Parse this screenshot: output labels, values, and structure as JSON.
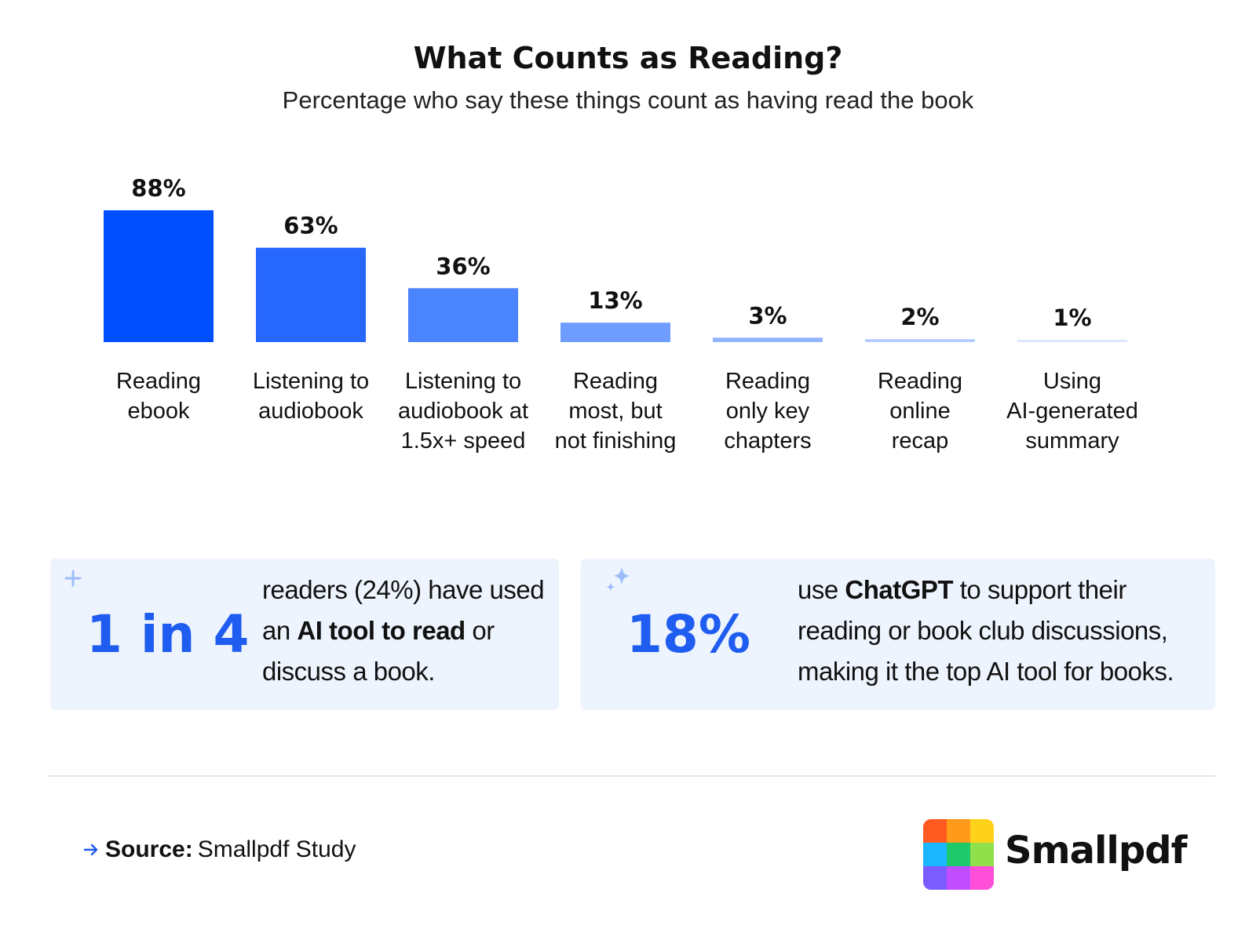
{
  "chart_data": {
    "type": "bar",
    "title": "What Counts as Reading?",
    "subtitle": "Percentage who say these things count as having read the book",
    "categories": [
      [
        "Reading",
        "ebook"
      ],
      [
        "Listening to",
        "audiobook"
      ],
      [
        "Listening to",
        "audiobook at",
        "1.5x+ speed"
      ],
      [
        "Reading",
        "most, but",
        "not finishing"
      ],
      [
        "Reading",
        "only key",
        "chapters"
      ],
      [
        "Reading",
        "online",
        "recap"
      ],
      [
        "Using",
        "AI-generated",
        "summary"
      ]
    ],
    "values": [
      88,
      63,
      36,
      13,
      3,
      2,
      1
    ],
    "value_labels": [
      "88%",
      "63%",
      "36%",
      "13%",
      "3%",
      "2%",
      "1%"
    ],
    "bar_colors": [
      "#0050ff",
      "#2667ff",
      "#4b84ff",
      "#6f9dff",
      "#93b5ff",
      "#b7cdff",
      "#dbe6ff"
    ],
    "ylim": [
      0,
      88
    ],
    "grid": false,
    "legend": "none"
  },
  "cards": [
    {
      "big": "1 in 4",
      "text_before": "readers (24%) have used an ",
      "text_bold": "AI tool to read",
      "text_after": " or discuss a book.",
      "icon": "plus-icon"
    },
    {
      "big": "18%",
      "text_before": "use ",
      "text_bold": "ChatGPT",
      "text_after": " to support their reading or book club discussions, making it the top AI tool for books.",
      "icon": "sparkle-icon"
    }
  ],
  "source": {
    "label": "Source:",
    "value": "Smallpdf Study"
  },
  "brand": {
    "name": "Smallpdf"
  },
  "colors": {
    "accent": "#1f5cf0",
    "card_bg": "#eef4fd"
  }
}
